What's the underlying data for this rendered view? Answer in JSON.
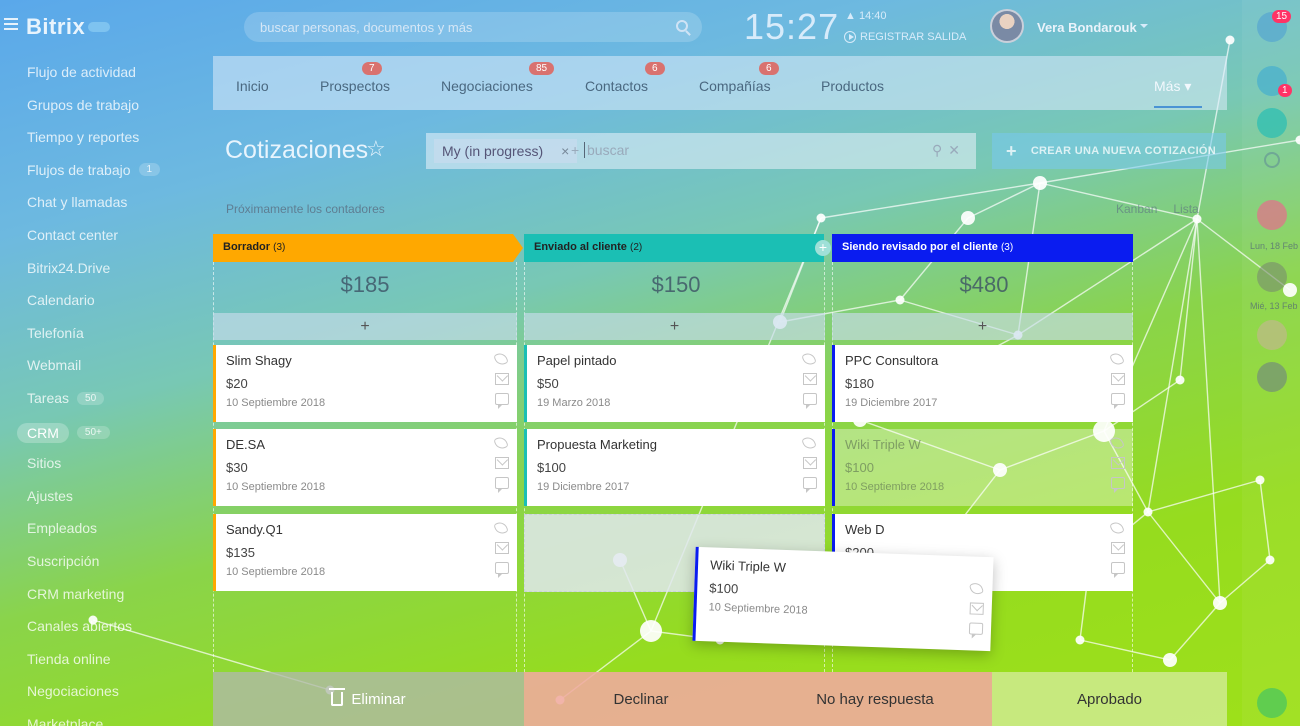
{
  "app": {
    "logo": "Bitrix",
    "search_placeholder": "buscar personas, documentos y más"
  },
  "header": {
    "clock": "15:27",
    "alarm_time": "14:40",
    "register_label": "REGISTRAR SALIDA",
    "user_name": "Vera Bondarouk"
  },
  "sidebar": {
    "items": [
      {
        "label": "Flujo de actividad"
      },
      {
        "label": "Grupos de trabajo"
      },
      {
        "label": "Tiempo y reportes"
      },
      {
        "label": "Flujos de trabajo",
        "badge": "1"
      },
      {
        "label": "Chat y llamadas"
      },
      {
        "label": "Contact center"
      },
      {
        "label": "Bitrix24.Drive"
      },
      {
        "label": "Calendario"
      },
      {
        "label": "Telefonía"
      },
      {
        "label": "Webmail"
      },
      {
        "label": "Tareas",
        "badge": "50"
      },
      {
        "label": "CRM",
        "badge": "50+",
        "active": true
      },
      {
        "label": "Sitios"
      },
      {
        "label": "Ajustes"
      },
      {
        "label": "Empleados"
      },
      {
        "label": "Suscripción"
      },
      {
        "label": "CRM marketing"
      },
      {
        "label": "Canales abiertos"
      },
      {
        "label": "Tienda online"
      },
      {
        "label": "Negociaciones"
      },
      {
        "label": "Marketplace"
      }
    ]
  },
  "nav": {
    "tabs": [
      {
        "label": "Inicio",
        "count": ""
      },
      {
        "label": "Prospectos",
        "count": "7"
      },
      {
        "label": "Negociaciones",
        "count": "85"
      },
      {
        "label": "Contactos",
        "count": "6"
      },
      {
        "label": "Compañías",
        "count": "6"
      },
      {
        "label": "Productos",
        "count": ""
      }
    ],
    "more_label": "Más"
  },
  "page": {
    "title": "Cotizaciones",
    "filter_tag": "My (in progress)",
    "filter_placeholder": "buscar",
    "create_button": "CREAR UNA NUEVA COTIZACIÓN",
    "counters_label": "Próximamente los contadores",
    "view_kanban": "Kanban",
    "view_list": "Lista"
  },
  "columns": [
    {
      "name": "Borrador",
      "count": "(3)",
      "total": "$185",
      "color": "#ffa800",
      "cards": [
        {
          "title": "Slim Shagy",
          "price": "$20",
          "date": "10 Septiembre 2018"
        },
        {
          "title": "DE.SA",
          "price": "$30",
          "date": "10 Septiembre 2018"
        },
        {
          "title": "Sandy.Q1",
          "price": "$135",
          "date": "10 Septiembre 2018"
        }
      ]
    },
    {
      "name": "Enviado al cliente",
      "count": "(2)",
      "total": "$150",
      "color": "#1bbfb4",
      "cards": [
        {
          "title": "Papel pintado",
          "price": "$50",
          "date": "19 Marzo 2018"
        },
        {
          "title": "Propuesta Marketing",
          "price": "$100",
          "date": "19 Diciembre 2017"
        }
      ]
    },
    {
      "name": "Siendo revisado por el cliente",
      "count": "(3)",
      "total": "$480",
      "color": "#0a1cf0",
      "cards": [
        {
          "title": "PPC Consultora",
          "price": "$180",
          "date": "19 Diciembre 2017"
        },
        {
          "title": "Wiki Triple W",
          "price": "$100",
          "date": "10 Septiembre 2018",
          "faded": true
        },
        {
          "title": "Web D",
          "price": "$200",
          "date": ""
        }
      ]
    }
  ],
  "dragging_card": {
    "title": "Wiki Triple W",
    "price": "$100",
    "date": "10 Septiembre 2018"
  },
  "bottom": {
    "delete": "Eliminar",
    "decline": "Declinar",
    "no_answer": "No hay respuesta",
    "approved": "Aprobado"
  },
  "right_bar": {
    "notif_count": "15",
    "msg_count": "1",
    "date1": "Lun, 18 Feb",
    "date2": "Mié, 13 Feb"
  }
}
